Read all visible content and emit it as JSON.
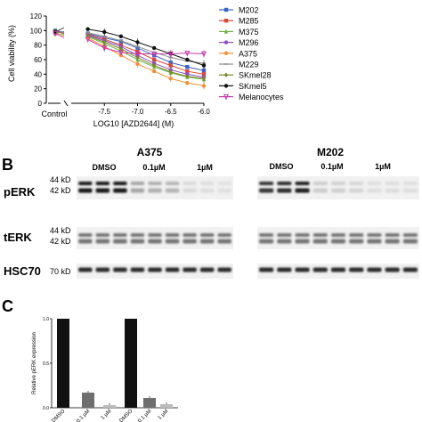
{
  "panel_a": {
    "ylabel": "Cell viability (%)",
    "xlabel": "LOG10 [AZD2644] (M)",
    "control_label": "Control",
    "yticks": [
      "0",
      "20",
      "40",
      "60",
      "80",
      "100",
      "120"
    ],
    "xticks": [
      "-7.5",
      "-7.0",
      "-6.5",
      "-6.0"
    ]
  },
  "panel_b": {
    "label": "B",
    "groups": [
      {
        "title": "A375",
        "conditions": [
          "DMSO",
          "0.1µM",
          "1µM"
        ]
      },
      {
        "title": "M202",
        "conditions": [
          "DMSO",
          "0.1µM",
          "1µM"
        ]
      }
    ],
    "rows": [
      {
        "name": "pERK",
        "kd": [
          "44 kD",
          "42 kD"
        ]
      },
      {
        "name": "tERK",
        "kd": [
          "44 kD",
          "42 kD"
        ]
      },
      {
        "name": "HSC70",
        "kd": [
          "70 kD"
        ]
      }
    ]
  },
  "panel_c": {
    "label": "C",
    "ylabel": "Relative pERK expression",
    "bar_colors": [
      "#111111",
      "#6e6e6e",
      "#bcbcbc"
    ]
  },
  "chart_data": [
    {
      "type": "line",
      "ylabel": "Cell viability (%)",
      "xlabel": "LOG10 [AZD2644] (M)",
      "ylim": [
        0,
        120
      ],
      "xlim": [
        -8.0,
        -6.0
      ],
      "control_value_approx": 100,
      "x": [
        -7.75,
        -7.5,
        -7.25,
        -7.0,
        -6.75,
        -6.5,
        -6.25,
        -6.0
      ],
      "series": [
        {
          "name": "M202",
          "color": "#3a64c8",
          "marker": "square",
          "values": [
            96,
            90,
            85,
            76,
            66,
            56,
            50,
            45
          ]
        },
        {
          "name": "M285",
          "color": "#d64a3c",
          "marker": "square",
          "values": [
            95,
            88,
            80,
            71,
            60,
            52,
            44,
            40
          ]
        },
        {
          "name": "M375",
          "color": "#6fb04a",
          "marker": "triangle",
          "values": [
            92,
            82,
            72,
            60,
            50,
            42,
            36,
            33
          ]
        },
        {
          "name": "M296",
          "color": "#8d4dc2",
          "marker": "circle",
          "values": [
            94,
            86,
            78,
            66,
            55,
            46,
            40,
            36
          ]
        },
        {
          "name": "A375",
          "color": "#f0913a",
          "marker": "circle",
          "values": [
            90,
            78,
            66,
            54,
            44,
            34,
            28,
            24
          ]
        },
        {
          "name": "M229",
          "color": "#8b8b8b",
          "marker": "line",
          "values": [
            97,
            92,
            86,
            78,
            70,
            63,
            58,
            55
          ]
        },
        {
          "name": "SKmel28",
          "color": "#7a8a2a",
          "marker": "diamond",
          "values": [
            93,
            84,
            75,
            63,
            52,
            43,
            37,
            34
          ]
        },
        {
          "name": "SKmel5",
          "color": "#111111",
          "marker": "circle",
          "values": [
            102,
            98,
            92,
            84,
            76,
            68,
            60,
            52
          ]
        },
        {
          "name": "Melanocytes",
          "color": "#c23aa8",
          "marker": "triangle-down",
          "values": [
            88,
            76,
            70,
            68,
            68,
            68,
            69,
            68
          ]
        }
      ],
      "legend": "right"
    },
    {
      "type": "bar",
      "ylabel": "Relative pERK expression",
      "ylim": [
        0,
        1.0
      ],
      "categories": [
        "DMSO",
        "0.1 µM",
        "1 µM",
        "DMSO",
        "0.1 µM",
        "1 µM"
      ],
      "values": [
        1.0,
        0.17,
        0.03,
        1.0,
        0.11,
        0.04
      ]
    }
  ]
}
